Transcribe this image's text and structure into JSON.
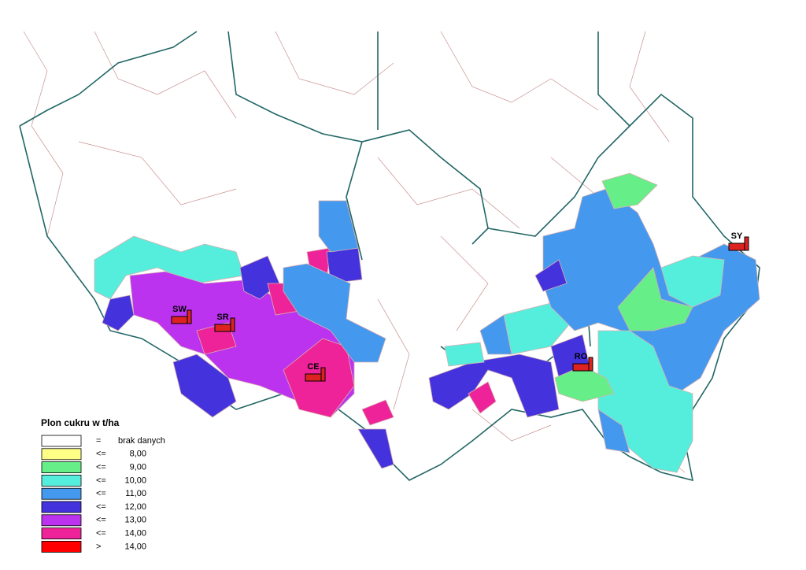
{
  "legend": {
    "title": "Plon cukru w t/ha",
    "items": [
      {
        "operator": "=",
        "label": "brak danych",
        "color": "#ffffff"
      },
      {
        "operator": "<=",
        "label": "8,00",
        "color": "#ffff88"
      },
      {
        "operator": "<=",
        "label": "9,00",
        "color": "#66ee88"
      },
      {
        "operator": "<=",
        "label": "10,00",
        "color": "#55eedd"
      },
      {
        "operator": "<=",
        "label": "11,00",
        "color": "#4499ee"
      },
      {
        "operator": "<=",
        "label": "12,00",
        "color": "#4433dd"
      },
      {
        "operator": "<=",
        "label": "13,00",
        "color": "#bb33ee"
      },
      {
        "operator": "<=",
        "label": "14,00",
        "color": "#ee2299"
      },
      {
        "operator": ">",
        "label": "14,00",
        "color": "#ff0000"
      }
    ]
  },
  "markers": [
    {
      "label": "SW"
    },
    {
      "label": "SR"
    },
    {
      "label": "CE"
    },
    {
      "label": "RO"
    },
    {
      "label": "SY"
    }
  ]
}
